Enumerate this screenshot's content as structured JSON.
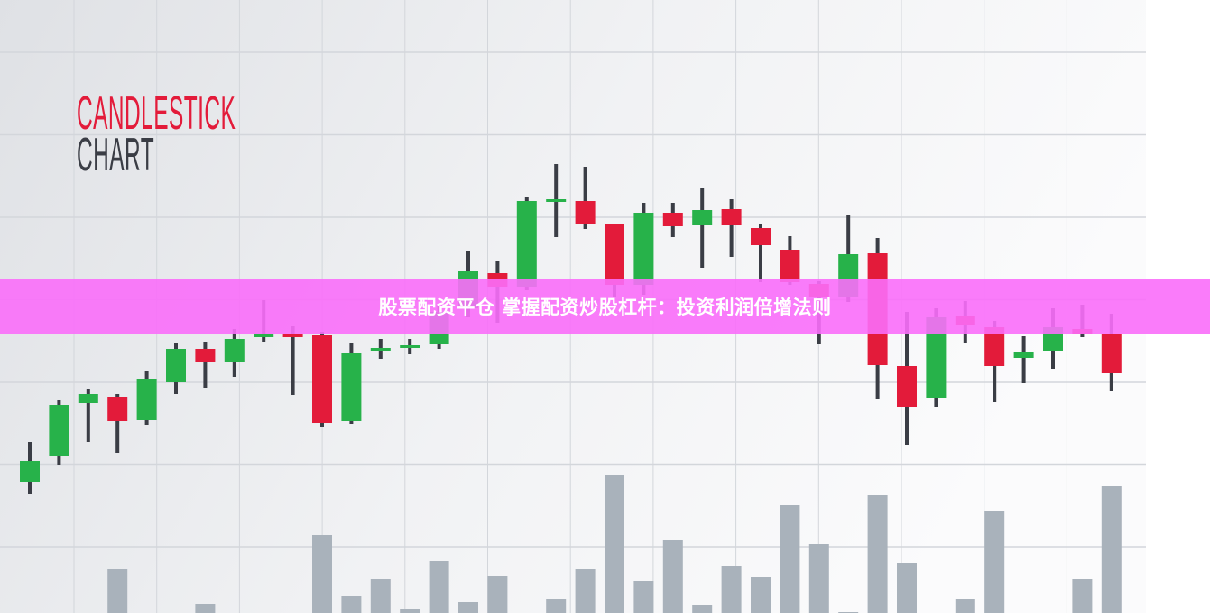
{
  "banner": {
    "text": "股票配资平仓 掌握配资炒股杠杆：投资利润倍增法则",
    "color": "#f96ef9"
  },
  "chart_data": {
    "type": "candlestick",
    "title_line1": "CANDLESTICK",
    "title_line2": "CHART",
    "colors": {
      "up": "#27b24a",
      "down": "#e31b3a",
      "wick": "#3a3d45",
      "volume": "#a9b2bb",
      "title_accent": "#e31b3a",
      "title_dark": "#3a3d45"
    },
    "grid": true,
    "axes_labeled": false,
    "candles": [
      {
        "o": 145,
        "h": 190,
        "l": 132,
        "c": 169
      },
      {
        "o": 174,
        "h": 236,
        "l": 164,
        "c": 231
      },
      {
        "o": 233,
        "h": 249,
        "l": 190,
        "c": 243
      },
      {
        "o": 240,
        "h": 243,
        "l": 177,
        "c": 213
      },
      {
        "o": 214,
        "h": 268,
        "l": 209,
        "c": 260
      },
      {
        "o": 256,
        "h": 299,
        "l": 243,
        "c": 293
      },
      {
        "o": 293,
        "h": 301,
        "l": 250,
        "c": 278
      },
      {
        "o": 278,
        "h": 315,
        "l": 262,
        "c": 304
      },
      {
        "o": 307,
        "h": 347,
        "l": 301,
        "c": 309
      },
      {
        "o": 309,
        "h": 318,
        "l": 242,
        "c": 307
      },
      {
        "o": 308,
        "h": 312,
        "l": 206,
        "c": 211
      },
      {
        "o": 213,
        "h": 299,
        "l": 210,
        "c": 288
      },
      {
        "o": 292,
        "h": 304,
        "l": 282,
        "c": 294
      },
      {
        "o": 295,
        "h": 304,
        "l": 287,
        "c": 297
      },
      {
        "o": 298,
        "h": 340,
        "l": 293,
        "c": 334
      },
      {
        "o": 338,
        "h": 402,
        "l": 328,
        "c": 379
      },
      {
        "o": 377,
        "h": 390,
        "l": 322,
        "c": 362
      },
      {
        "o": 362,
        "h": 461,
        "l": 358,
        "c": 457
      },
      {
        "o": 457,
        "h": 498,
        "l": 417,
        "c": 459
      },
      {
        "o": 457,
        "h": 495,
        "l": 426,
        "c": 431
      },
      {
        "o": 431,
        "h": 431,
        "l": 350,
        "c": 364
      },
      {
        "o": 364,
        "h": 455,
        "l": 353,
        "c": 444
      },
      {
        "o": 444,
        "h": 455,
        "l": 417,
        "c": 429
      },
      {
        "o": 430,
        "h": 471,
        "l": 383,
        "c": 447
      },
      {
        "o": 448,
        "h": 459,
        "l": 395,
        "c": 430
      },
      {
        "o": 427,
        "h": 432,
        "l": 367,
        "c": 408
      },
      {
        "o": 403,
        "h": 418,
        "l": 364,
        "c": 367
      },
      {
        "o": 365,
        "h": 368,
        "l": 298,
        "c": 350
      },
      {
        "o": 350,
        "h": 442,
        "l": 345,
        "c": 398
      },
      {
        "o": 399,
        "h": 416,
        "l": 237,
        "c": 275
      },
      {
        "o": 274,
        "h": 334,
        "l": 186,
        "c": 229
      },
      {
        "o": 239,
        "h": 338,
        "l": 228,
        "c": 328
      },
      {
        "o": 329,
        "h": 346,
        "l": 300,
        "c": 320
      },
      {
        "o": 317,
        "h": 324,
        "l": 234,
        "c": 274
      },
      {
        "o": 283,
        "h": 307,
        "l": 255,
        "c": 289
      },
      {
        "o": 291,
        "h": 338,
        "l": 271,
        "c": 317
      },
      {
        "o": 315,
        "h": 342,
        "l": 306,
        "c": 309
      },
      {
        "o": 309,
        "h": 332,
        "l": 246,
        "c": 266
      }
    ],
    "volume": [
      0,
      0,
      0,
      49,
      0,
      0,
      10,
      0,
      0,
      0,
      86,
      19,
      38,
      4,
      58,
      12,
      41,
      0,
      15,
      49,
      153,
      35,
      81,
      9,
      52,
      40,
      120,
      76,
      1,
      131,
      55,
      0,
      15,
      113,
      0,
      0,
      38,
      141
    ]
  }
}
